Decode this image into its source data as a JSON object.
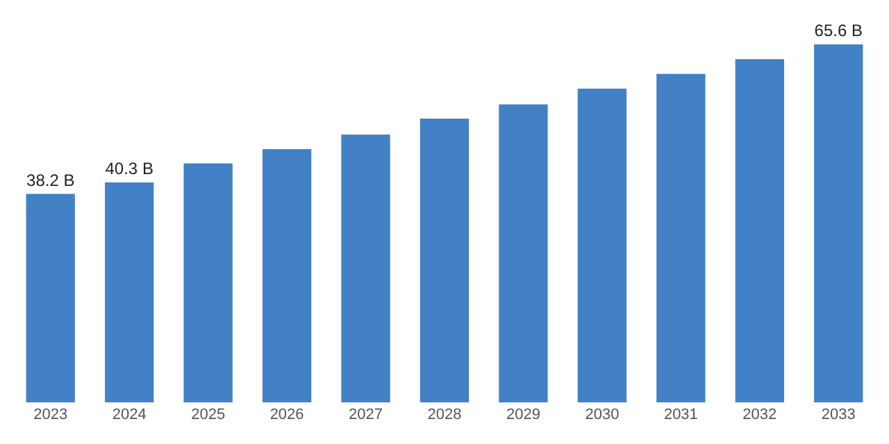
{
  "chart_data": {
    "type": "bar",
    "categories": [
      "2023",
      "2024",
      "2025",
      "2026",
      "2027",
      "2028",
      "2029",
      "2030",
      "2031",
      "2032",
      "2033"
    ],
    "values": [
      38.2,
      40.3,
      43.8,
      46.4,
      49.1,
      52.0,
      54.6,
      57.5,
      60.2,
      62.9,
      65.6
    ],
    "value_labels": [
      "38.2 B",
      "40.3 B",
      null,
      null,
      null,
      null,
      null,
      null,
      null,
      null,
      "65.6 B"
    ],
    "color": "#4281c6",
    "grid": false,
    "tick_labels": "x",
    "legend": false
  }
}
